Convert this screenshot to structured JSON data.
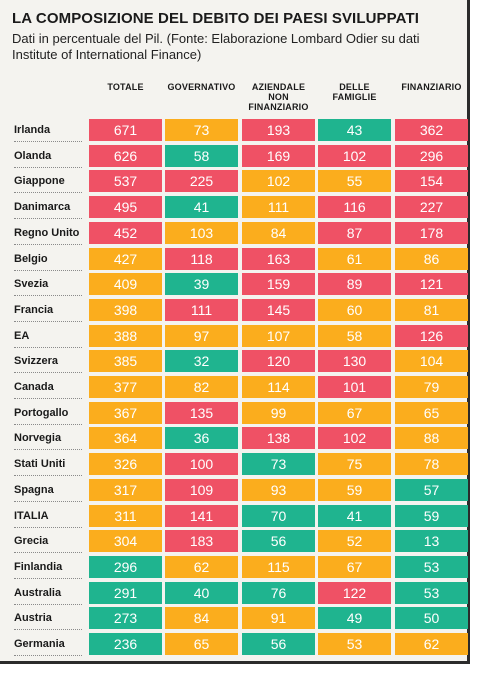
{
  "header": {
    "title": "LA COMPOSIZIONE DEL DEBITO DEI PAESI SVILUPPATI",
    "subtitle": "Dati in percentuale del Pil. (Fonte: Elaborazione Lombard Odier su dati Institute of International Finance)"
  },
  "colors": {
    "red": "#ef5165",
    "orange": "#fbad1d",
    "green": "#1fb48f"
  },
  "chart_data": {
    "type": "table",
    "columns": [
      {
        "key": "totale",
        "lines": [
          "TOTALE"
        ]
      },
      {
        "key": "governativo",
        "lines": [
          "GOVERNATIVO"
        ]
      },
      {
        "key": "aziendale",
        "lines": [
          "AZIENDALE",
          "NON",
          "FINANZIARIO"
        ]
      },
      {
        "key": "famiglie",
        "lines": [
          "DELLE",
          "FAMIGLIE"
        ]
      },
      {
        "key": "finanziario",
        "lines": [
          "FINANZIARIO"
        ]
      }
    ],
    "rows": [
      {
        "country": "Irlanda",
        "values": [
          671,
          73,
          193,
          43,
          362
        ],
        "colors": [
          "red",
          "orange",
          "red",
          "green",
          "red"
        ]
      },
      {
        "country": "Olanda",
        "values": [
          626,
          58,
          169,
          102,
          296
        ],
        "colors": [
          "red",
          "green",
          "red",
          "red",
          "red"
        ]
      },
      {
        "country": "Giappone",
        "values": [
          537,
          225,
          102,
          55,
          154
        ],
        "colors": [
          "red",
          "red",
          "orange",
          "orange",
          "red"
        ]
      },
      {
        "country": "Danimarca",
        "values": [
          495,
          41,
          111,
          116,
          227
        ],
        "colors": [
          "red",
          "green",
          "orange",
          "red",
          "red"
        ]
      },
      {
        "country": "Regno Unito",
        "values": [
          452,
          103,
          84,
          87,
          178
        ],
        "colors": [
          "red",
          "orange",
          "orange",
          "red",
          "red"
        ]
      },
      {
        "country": "Belgio",
        "values": [
          427,
          118,
          163,
          61,
          86
        ],
        "colors": [
          "orange",
          "red",
          "red",
          "orange",
          "orange"
        ]
      },
      {
        "country": "Svezia",
        "values": [
          409,
          39,
          159,
          89,
          121
        ],
        "colors": [
          "orange",
          "green",
          "red",
          "red",
          "red"
        ]
      },
      {
        "country": "Francia",
        "values": [
          398,
          111,
          145,
          60,
          81
        ],
        "colors": [
          "orange",
          "red",
          "red",
          "orange",
          "orange"
        ]
      },
      {
        "country": "EA",
        "values": [
          388,
          97,
          107,
          58,
          126
        ],
        "colors": [
          "orange",
          "orange",
          "orange",
          "orange",
          "red"
        ]
      },
      {
        "country": "Svizzera",
        "values": [
          385,
          32,
          120,
          130,
          104
        ],
        "colors": [
          "orange",
          "green",
          "red",
          "red",
          "orange"
        ]
      },
      {
        "country": "Canada",
        "values": [
          377,
          82,
          114,
          101,
          79
        ],
        "colors": [
          "orange",
          "orange",
          "orange",
          "red",
          "orange"
        ]
      },
      {
        "country": "Portogallo",
        "values": [
          367,
          135,
          99,
          67,
          65
        ],
        "colors": [
          "orange",
          "red",
          "orange",
          "orange",
          "orange"
        ]
      },
      {
        "country": "Norvegia",
        "values": [
          364,
          36,
          138,
          102,
          88
        ],
        "colors": [
          "orange",
          "green",
          "red",
          "red",
          "orange"
        ]
      },
      {
        "country": "Stati Uniti",
        "values": [
          326,
          100,
          73,
          75,
          78
        ],
        "colors": [
          "orange",
          "red",
          "green",
          "orange",
          "orange"
        ]
      },
      {
        "country": "Spagna",
        "values": [
          317,
          109,
          93,
          59,
          57
        ],
        "colors": [
          "orange",
          "red",
          "orange",
          "orange",
          "green"
        ]
      },
      {
        "country": "ITALIA",
        "values": [
          311,
          141,
          70,
          41,
          59
        ],
        "colors": [
          "orange",
          "red",
          "green",
          "green",
          "green"
        ]
      },
      {
        "country": "Grecia",
        "values": [
          304,
          183,
          56,
          52,
          13
        ],
        "colors": [
          "orange",
          "red",
          "green",
          "orange",
          "green"
        ]
      },
      {
        "country": "Finlandia",
        "values": [
          296,
          62,
          115,
          67,
          53
        ],
        "colors": [
          "green",
          "orange",
          "orange",
          "orange",
          "green"
        ]
      },
      {
        "country": "Australia",
        "values": [
          291,
          40,
          76,
          122,
          53
        ],
        "colors": [
          "green",
          "green",
          "green",
          "red",
          "green"
        ]
      },
      {
        "country": "Austria",
        "values": [
          273,
          84,
          91,
          49,
          50
        ],
        "colors": [
          "green",
          "orange",
          "orange",
          "green",
          "green"
        ]
      },
      {
        "country": "Germania",
        "values": [
          236,
          65,
          56,
          53,
          62
        ],
        "colors": [
          "green",
          "orange",
          "green",
          "orange",
          "orange"
        ]
      }
    ]
  }
}
